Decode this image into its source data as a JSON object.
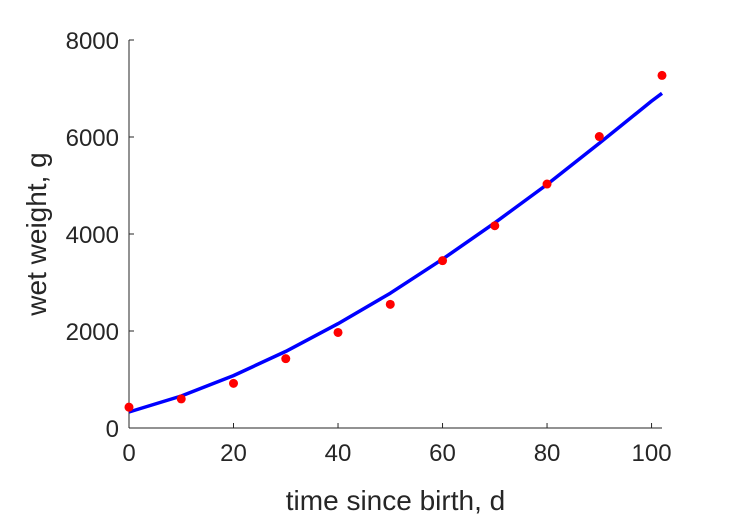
{
  "chart_data": {
    "type": "scatter",
    "title": "",
    "xlabel": "time since birth, d",
    "ylabel": "wet weight, g",
    "xlim": [
      0,
      102
    ],
    "ylim": [
      0,
      8000
    ],
    "xticks": [
      0,
      20,
      40,
      60,
      80,
      100
    ],
    "yticks": [
      0,
      2000,
      4000,
      6000,
      8000
    ],
    "grid": false,
    "legend": "none",
    "series": [
      {
        "type": "scatter",
        "color": "#ff0000",
        "x": [
          0,
          10,
          20,
          30,
          40,
          50,
          60,
          70,
          80,
          90,
          102
        ],
        "y": [
          430,
          600,
          920,
          1430,
          1970,
          2550,
          3450,
          4170,
          5030,
          6010,
          7270
        ]
      },
      {
        "type": "line",
        "color": "#0000ff",
        "x": [
          0,
          10,
          20,
          30,
          40,
          50,
          60,
          70,
          80,
          90,
          100,
          102
        ],
        "y": [
          330,
          660,
          1080,
          1580,
          2150,
          2780,
          3480,
          4230,
          5020,
          5870,
          6740,
          6900
        ]
      }
    ]
  }
}
